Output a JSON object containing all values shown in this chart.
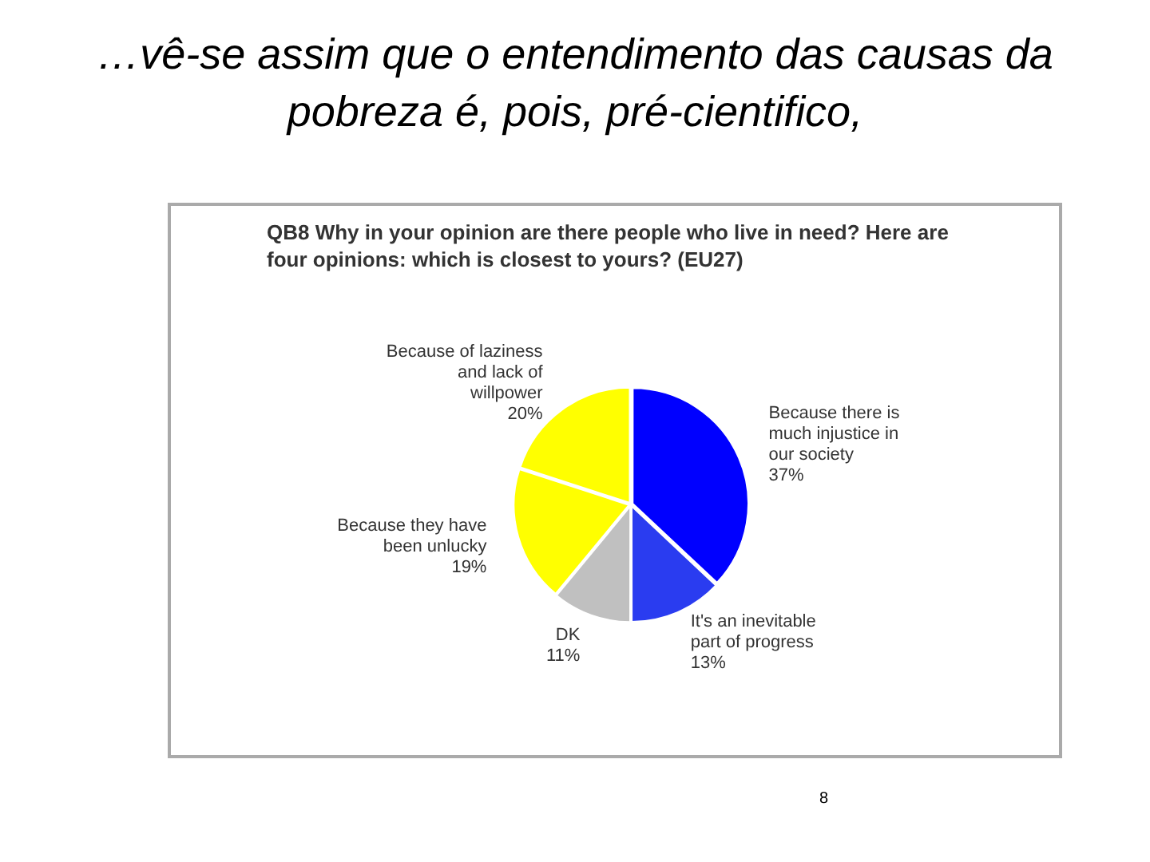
{
  "chart_data": {
    "type": "pie",
    "title": "…vê-se assim que o entendimento das causas da pobreza é, pois, pré-cientifico,",
    "subtitle": "QB8 Why in your opinion are there people who live in need? Here are four opinions: which is closest to yours? (EU27)",
    "categories": [
      "Because there is much injustice in our society",
      "It's an inevitable part of progress",
      "DK",
      "Because they have been unlucky",
      "Because of laziness and lack of willpower"
    ],
    "values": [
      37,
      13,
      11,
      19,
      20
    ],
    "colors": [
      "#0000ff",
      "#2a3cf0",
      "#c0c0c0",
      "#ffff00",
      "#ffff00"
    ],
    "value_labels": [
      "37%",
      "13%",
      "11%",
      "19%",
      "20%"
    ],
    "legend": false,
    "annotations": [
      "8"
    ]
  }
}
